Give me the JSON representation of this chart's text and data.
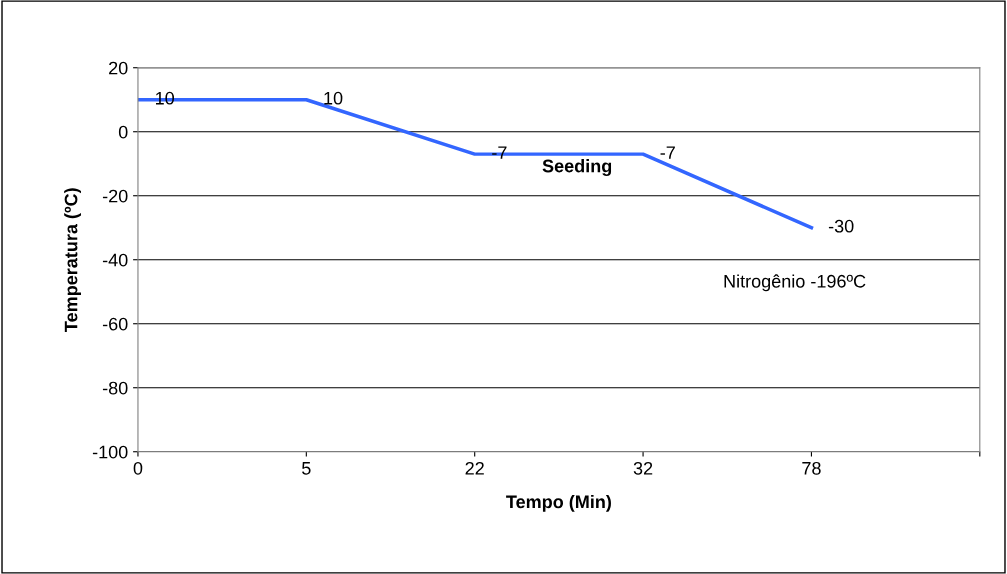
{
  "chart_data": {
    "type": "line",
    "xlabel": "Tempo (Min)",
    "ylabel": "Temperatura (ºC)",
    "categories": [
      "0",
      "5",
      "22",
      "32",
      "78",
      null
    ],
    "series": [
      {
        "color": "#3366ff",
        "values": [
          10,
          10,
          -7,
          -7,
          -30,
          null
        ]
      }
    ],
    "ylim": [
      -100,
      20
    ],
    "yticks": [
      -100,
      -80,
      -60,
      -40,
      -20,
      0,
      20
    ],
    "grid": "y",
    "data_labels": true,
    "marker": "none",
    "line_style": "solid",
    "annotations": [
      "Seeding",
      "Nitrogênio -196ºC"
    ]
  }
}
